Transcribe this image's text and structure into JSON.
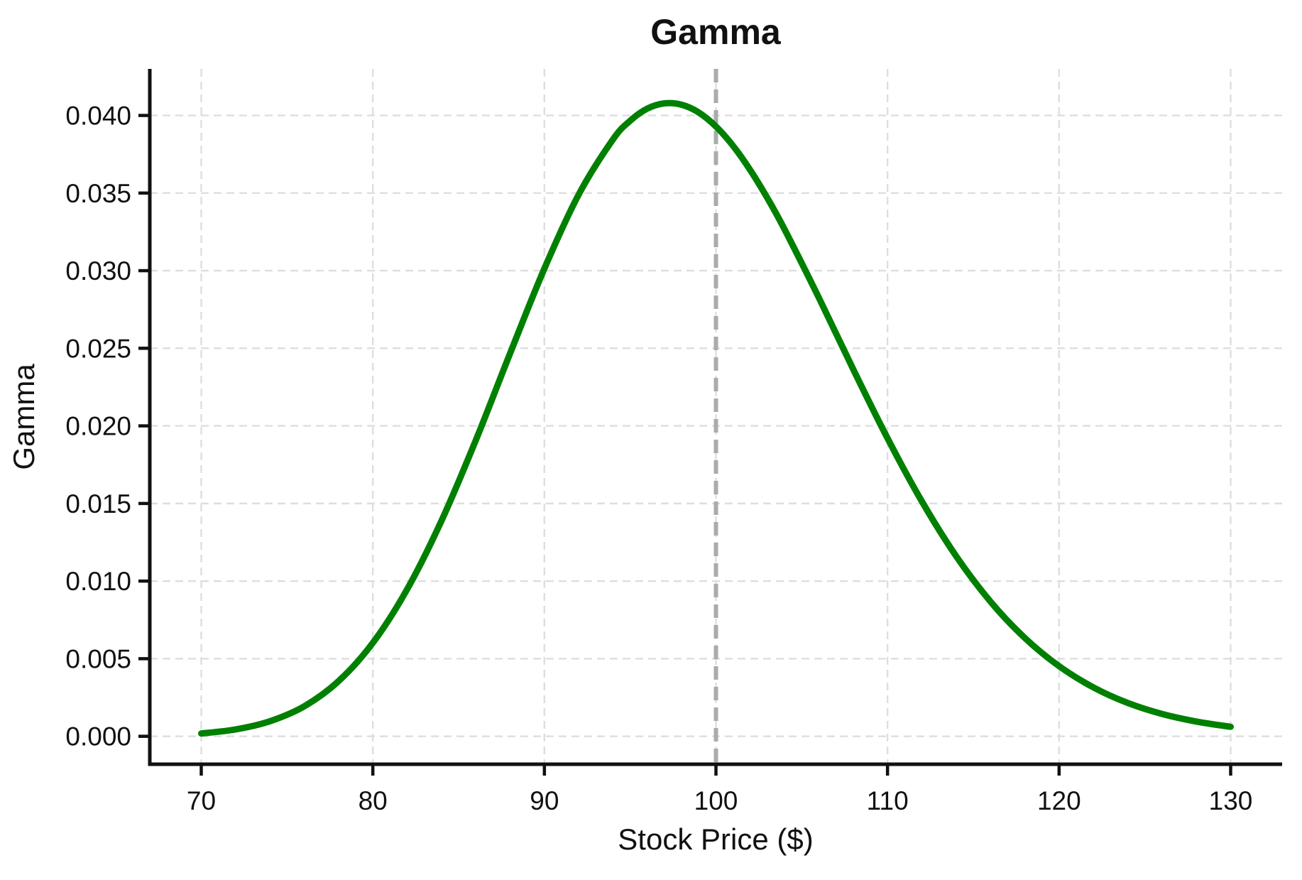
{
  "figure": {
    "background_color": "#ffffff"
  },
  "chart_data": {
    "type": "line",
    "title": "Gamma",
    "xlabel": "Stock Price ($)",
    "ylabel": "Gamma",
    "grid": true,
    "legend": "none",
    "xlim": [
      67,
      133
    ],
    "ylim": [
      -0.0018,
      0.043
    ],
    "xticks": [
      70,
      80,
      90,
      100,
      110,
      120,
      130
    ],
    "xtick_labels": [
      "70",
      "80",
      "90",
      "100",
      "110",
      "120",
      "130"
    ],
    "yticks": [
      0.0,
      0.005,
      0.01,
      0.015,
      0.02,
      0.025,
      0.03,
      0.035,
      0.04
    ],
    "ytick_labels": [
      "0.000",
      "0.005",
      "0.010",
      "0.015",
      "0.020",
      "0.025",
      "0.030",
      "0.035",
      "0.040"
    ],
    "series": [
      {
        "name": "Gamma",
        "color": "#008000",
        "x": [
          70,
          72,
          74,
          76,
          78,
          80,
          82,
          84,
          86,
          88,
          90,
          92,
          94,
          95,
          96,
          97,
          98,
          99,
          100,
          101,
          102,
          103,
          104,
          106,
          108,
          110,
          112,
          114,
          116,
          118,
          120,
          122,
          124,
          126,
          128,
          130
        ],
        "y": [
          0.00018,
          0.00044,
          0.00097,
          0.00193,
          0.00355,
          0.00602,
          0.00947,
          0.01388,
          0.01907,
          0.02467,
          0.03013,
          0.03491,
          0.03846,
          0.03966,
          0.04044,
          0.04078,
          0.04069,
          0.04019,
          0.03929,
          0.03804,
          0.03648,
          0.03467,
          0.03266,
          0.02825,
          0.02365,
          0.0192,
          0.01514,
          0.01161,
          0.00868,
          0.00634,
          0.00452,
          0.00315,
          0.00215,
          0.00144,
          0.00095,
          0.00061
        ]
      }
    ],
    "reference_line": {
      "axis": "x",
      "value": 100,
      "color": "#ababab",
      "style": "dashed"
    },
    "peak": {
      "x": 97,
      "y": 0.0408
    },
    "grid_color": "#dedede",
    "axis_color": "#111111"
  }
}
